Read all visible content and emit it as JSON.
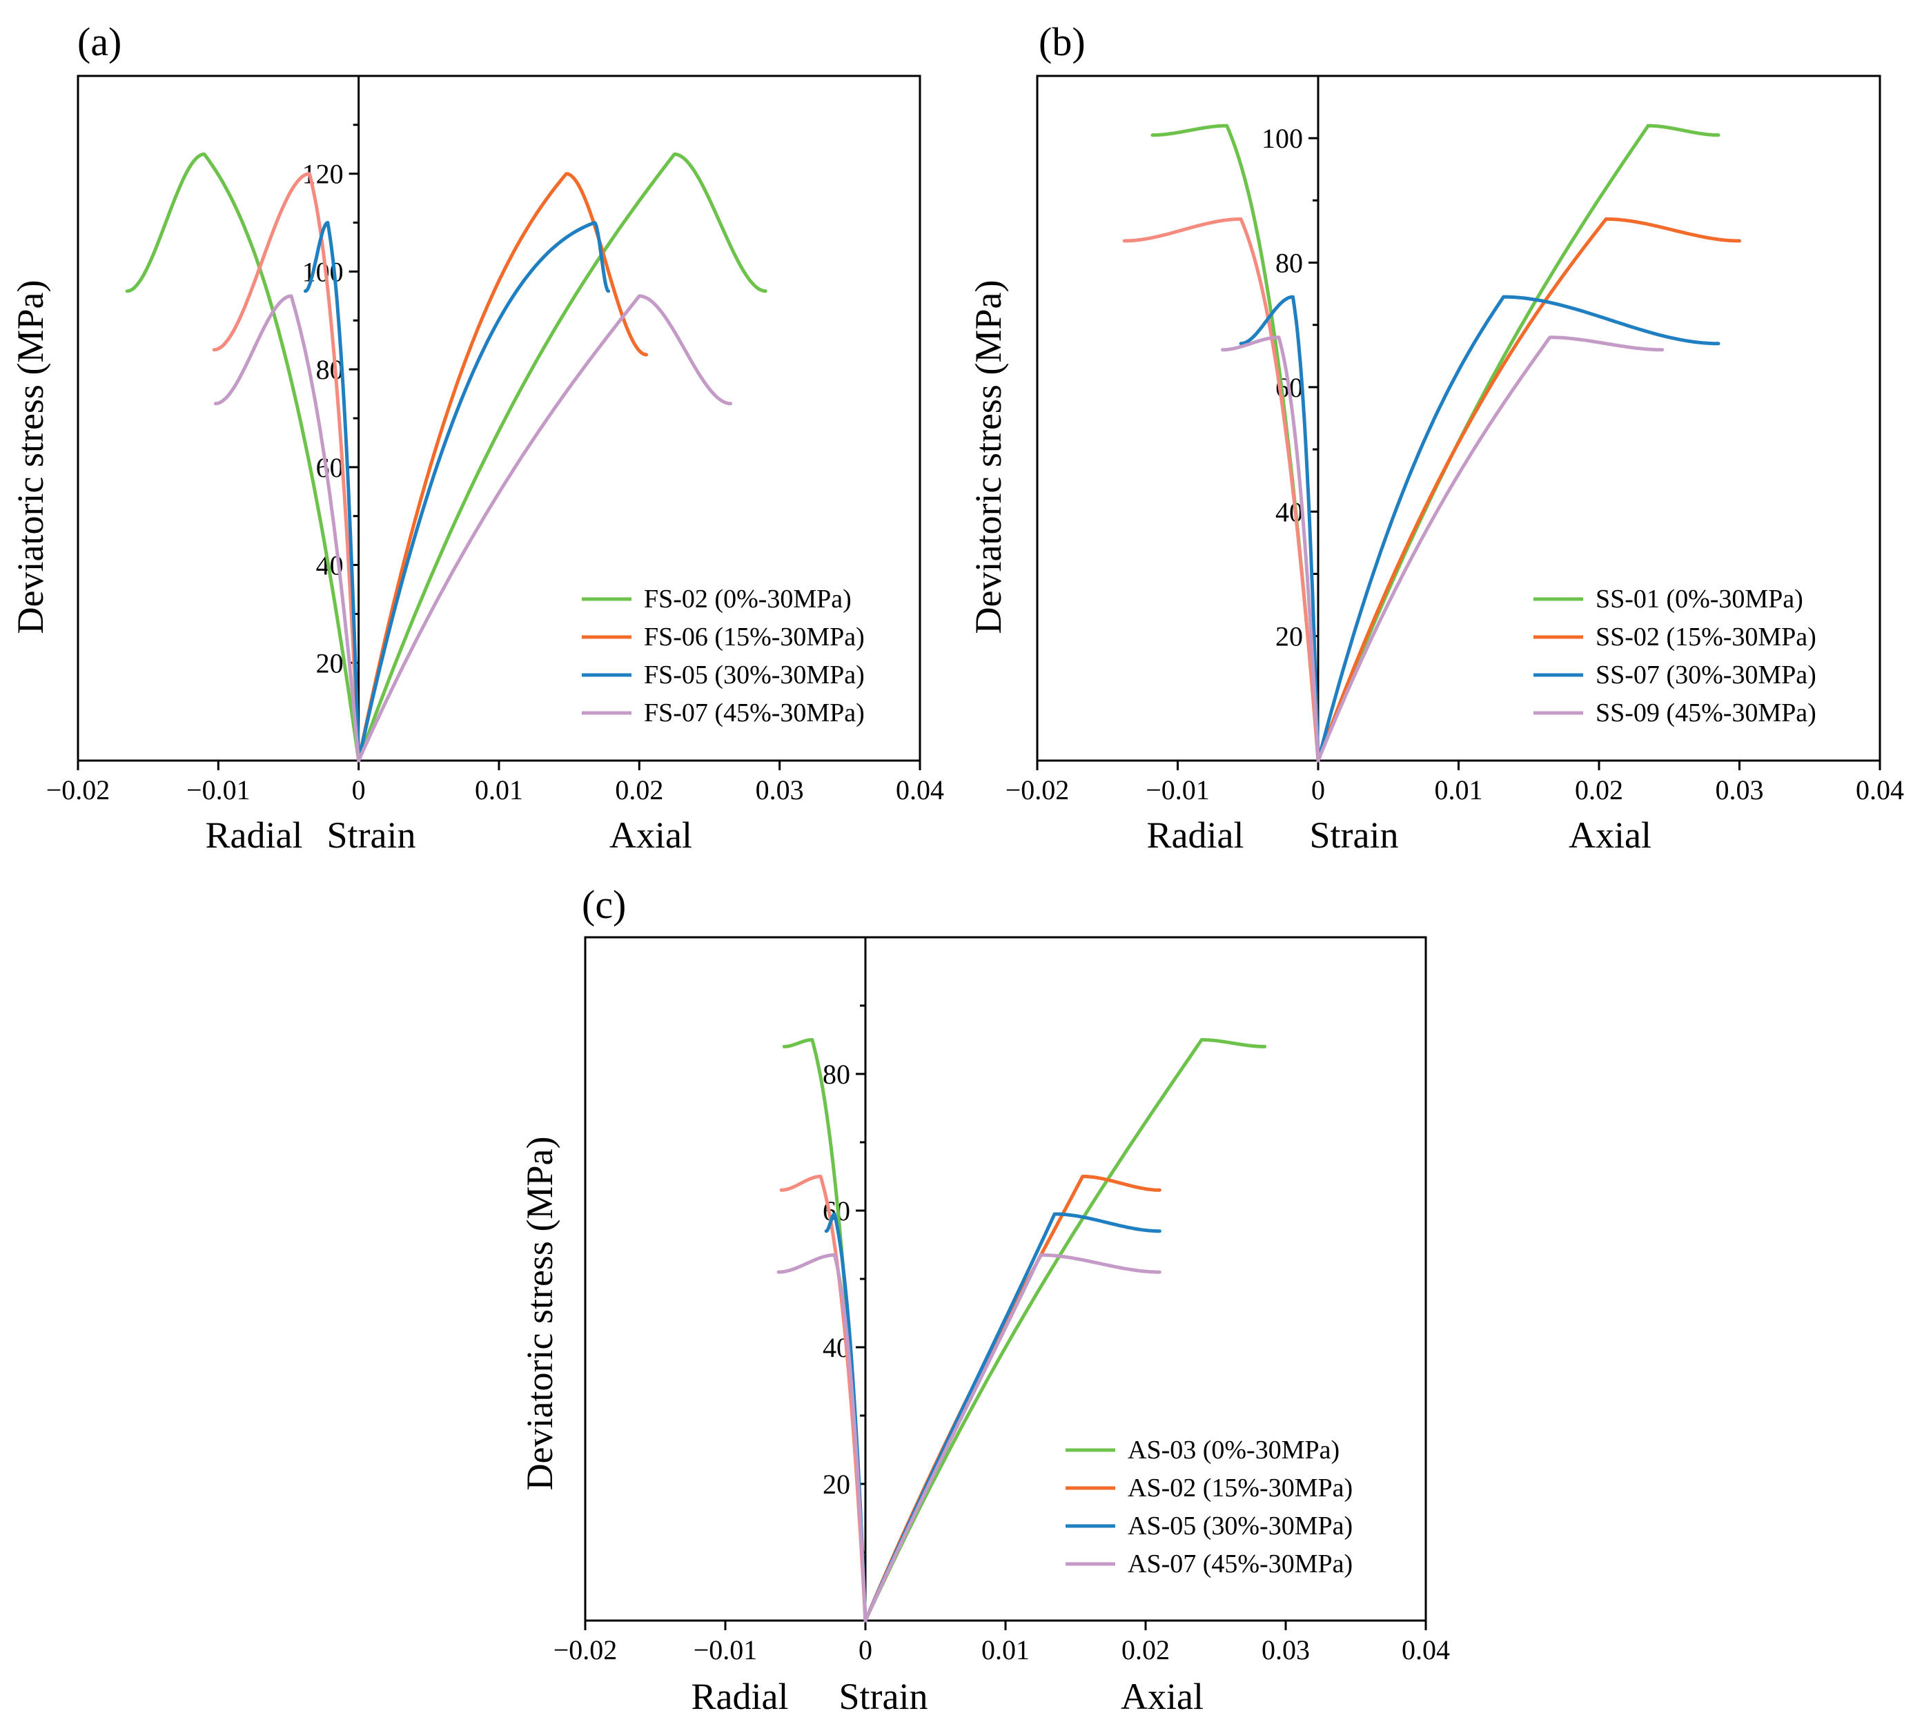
{
  "chart_data": [
    {
      "panel": "(a)",
      "type": "line",
      "ylabel": "Deviatoric stress (MPa)",
      "x_tick_labels": [
        "−0.02",
        "−0.01",
        "0",
        "0.01",
        "0.02",
        "0.03",
        "0.04"
      ],
      "x_ticks": [
        -0.02,
        -0.01,
        0,
        0.01,
        0.02,
        0.03,
        0.04
      ],
      "y_ticks": [
        20,
        40,
        60,
        80,
        100,
        120
      ],
      "xlim": [
        -0.02,
        0.04
      ],
      "ylim": [
        0,
        140
      ],
      "axis_words": [
        "Radial",
        "Strain",
        "Axial"
      ],
      "series": [
        {
          "name": "FS-02 (0%-30MPa)",
          "color": "#6cc24a",
          "radial_color": "#6cc24a",
          "peak": 124,
          "axial_peak_strain": 0.0225,
          "axial_end_strain": 0.029,
          "axial_end": 96,
          "radial_peak_strain": -0.011,
          "radial_end_strain": -0.0165,
          "radial_end": 96,
          "axial_knee": 0.4,
          "radial_knee": 0.2
        },
        {
          "name": "FS-06 (15%-30MPa)",
          "color": "#f26b2a",
          "radial_color": "#f58a7e",
          "peak": 120,
          "axial_peak_strain": 0.0148,
          "axial_end_strain": 0.0205,
          "axial_end": 83,
          "radial_peak_strain": -0.0035,
          "radial_end_strain": -0.0103,
          "radial_end": 84,
          "axial_knee": 0.25,
          "radial_knee": 0.2
        },
        {
          "name": "FS-05 (30%-30MPa)",
          "color": "#1f7fc1",
          "radial_color": "#1f7fc1",
          "peak": 110,
          "axial_peak_strain": 0.0168,
          "axial_end_strain": 0.0178,
          "axial_end": 96,
          "radial_peak_strain": -0.0022,
          "radial_end_strain": -0.0038,
          "radial_end": 96,
          "axial_knee": 0.1,
          "radial_knee": 0.2
        },
        {
          "name": "FS-07 (45%-30MPa)",
          "color": "#c49ac6",
          "radial_color": "#c49ac6",
          "peak": 95,
          "axial_peak_strain": 0.02,
          "axial_end_strain": 0.0265,
          "axial_end": 73,
          "radial_peak_strain": -0.0048,
          "radial_end_strain": -0.0102,
          "radial_end": 73,
          "axial_knee": 0.45,
          "radial_knee": 0.3
        }
      ]
    },
    {
      "panel": "(b)",
      "type": "line",
      "ylabel": "Deviatoric stress (MPa)",
      "x_tick_labels": [
        "−0.02",
        "−0.01",
        "0",
        "0.01",
        "0.02",
        "0.03",
        "0.04"
      ],
      "x_ticks": [
        -0.02,
        -0.01,
        0,
        0.01,
        0.02,
        0.03,
        0.04
      ],
      "y_ticks": [
        20,
        40,
        60,
        80,
        100
      ],
      "xlim": [
        -0.02,
        0.04
      ],
      "ylim": [
        0,
        110
      ],
      "axis_words": [
        "Radial",
        "Strain",
        "Axial"
      ],
      "series": [
        {
          "name": "SS-01 (0%-30MPa)",
          "color": "#6cc24a",
          "radial_color": "#6cc24a",
          "peak": 102,
          "axial_peak_strain": 0.0235,
          "axial_end_strain": 0.0285,
          "axial_end": 100.5,
          "radial_peak_strain": -0.0065,
          "radial_end_strain": -0.0118,
          "radial_end": 100.5,
          "axial_knee": 0.45,
          "radial_knee": 0.2
        },
        {
          "name": "SS-02 (15%-30MPa)",
          "color": "#f26b2a",
          "radial_color": "#f58a7e",
          "peak": 87,
          "axial_peak_strain": 0.0205,
          "axial_end_strain": 0.03,
          "axial_end": 83.5,
          "radial_peak_strain": -0.0055,
          "radial_end_strain": -0.0138,
          "radial_end": 83.5,
          "axial_knee": 0.4,
          "radial_knee": 0.2
        },
        {
          "name": "SS-07 (30%-30MPa)",
          "color": "#1f7fc1",
          "radial_color": "#1f7fc1",
          "peak": 74.5,
          "axial_peak_strain": 0.0132,
          "axial_end_strain": 0.0285,
          "axial_end": 67,
          "radial_peak_strain": -0.0018,
          "radial_end_strain": -0.0055,
          "radial_end": 67,
          "axial_knee": 0.35,
          "radial_knee": 0.2
        },
        {
          "name": "SS-09 (45%-30MPa)",
          "color": "#c49ac6",
          "radial_color": "#c49ac6",
          "peak": 68,
          "axial_peak_strain": 0.0165,
          "axial_end_strain": 0.0245,
          "axial_end": 66,
          "radial_peak_strain": -0.0028,
          "radial_end_strain": -0.0068,
          "radial_end": 66,
          "axial_knee": 0.45,
          "radial_knee": 0.2
        }
      ]
    },
    {
      "panel": "(c)",
      "type": "line",
      "ylabel": "Deviatoric stress (MPa)",
      "x_tick_labels": [
        "−0.02",
        "−0.01",
        "0",
        "0.01",
        "0.02",
        "0.03",
        "0.04"
      ],
      "x_ticks": [
        -0.02,
        -0.01,
        0,
        0.01,
        0.02,
        0.03,
        0.04
      ],
      "y_ticks": [
        20,
        40,
        60,
        80
      ],
      "xlim": [
        -0.02,
        0.04
      ],
      "ylim": [
        0,
        100
      ],
      "axis_words": [
        "Radial",
        "Strain",
        "Axial"
      ],
      "series": [
        {
          "name": "AS-03 (0%-30MPa)",
          "color": "#6cc24a",
          "radial_color": "#6cc24a",
          "peak": 85,
          "axial_peak_strain": 0.024,
          "axial_end_strain": 0.0285,
          "axial_end": 84,
          "radial_peak_strain": -0.0038,
          "radial_end_strain": -0.0058,
          "radial_end": 84,
          "axial_knee": 0.5,
          "radial_knee": 0.2
        },
        {
          "name": "AS-02 (15%-30MPa)",
          "color": "#f26b2a",
          "radial_color": "#f58a7e",
          "peak": 65,
          "axial_peak_strain": 0.0155,
          "axial_end_strain": 0.021,
          "axial_end": 63,
          "radial_peak_strain": -0.0032,
          "radial_end_strain": -0.006,
          "radial_end": 63,
          "axial_knee": 0.55,
          "radial_knee": 0.2
        },
        {
          "name": "AS-05 (30%-30MPa)",
          "color": "#1f7fc1",
          "radial_color": "#1f7fc1",
          "peak": 59.5,
          "axial_peak_strain": 0.0135,
          "axial_end_strain": 0.021,
          "axial_end": 57,
          "radial_peak_strain": -0.0022,
          "radial_end_strain": -0.0028,
          "radial_end": 57,
          "axial_knee": 0.6,
          "radial_knee": 0.2
        },
        {
          "name": "AS-07 (45%-30MPa)",
          "color": "#c49ac6",
          "radial_color": "#c49ac6",
          "peak": 53.5,
          "axial_peak_strain": 0.0125,
          "axial_end_strain": 0.021,
          "axial_end": 51,
          "radial_peak_strain": -0.0022,
          "radial_end_strain": -0.0062,
          "radial_end": 51,
          "axial_knee": 0.6,
          "radial_knee": 0.2
        }
      ]
    }
  ]
}
